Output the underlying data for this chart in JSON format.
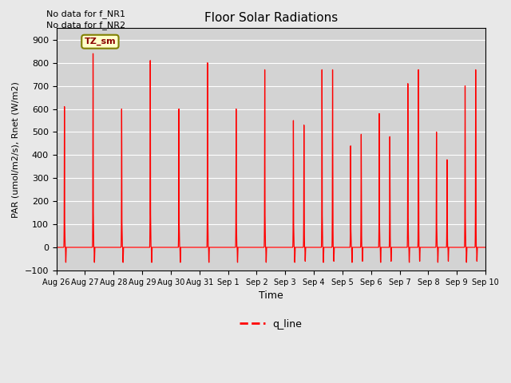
{
  "title": "Floor Solar Radiations",
  "xlabel": "Time",
  "ylabel": "PAR (umol/m2/s), Rnet (W/m2)",
  "ylim": [
    -100,
    950
  ],
  "yticks": [
    -100,
    0,
    100,
    200,
    300,
    400,
    500,
    600,
    700,
    800,
    900
  ],
  "xtick_labels": [
    "Aug 26",
    "Aug 27",
    "Aug 28",
    "Aug 29",
    "Aug 30",
    "Aug 31",
    "Sep 1",
    "Sep 2",
    "Sep 3",
    "Sep 4",
    "Sep 5",
    "Sep 6",
    "Sep 7",
    "Sep 8",
    "Sep 9",
    "Sep 10"
  ],
  "line_color": "red",
  "line_label": "q_line",
  "legend_label_tz": "TZ_sm",
  "note1": "No data for f_NR1",
  "note2": "No data for f_NR2",
  "bg_color": "#e8e8e8",
  "plot_bg_color": "#d3d3d3",
  "peak1_vals": [
    610,
    840,
    600,
    810,
    600,
    800,
    600,
    770,
    550,
    770,
    440,
    580,
    710,
    500,
    700
  ],
  "peak2_vals": [
    0,
    0,
    0,
    0,
    0,
    0,
    0,
    0,
    530,
    770,
    490,
    480,
    770,
    380,
    770
  ],
  "num_days": 15
}
